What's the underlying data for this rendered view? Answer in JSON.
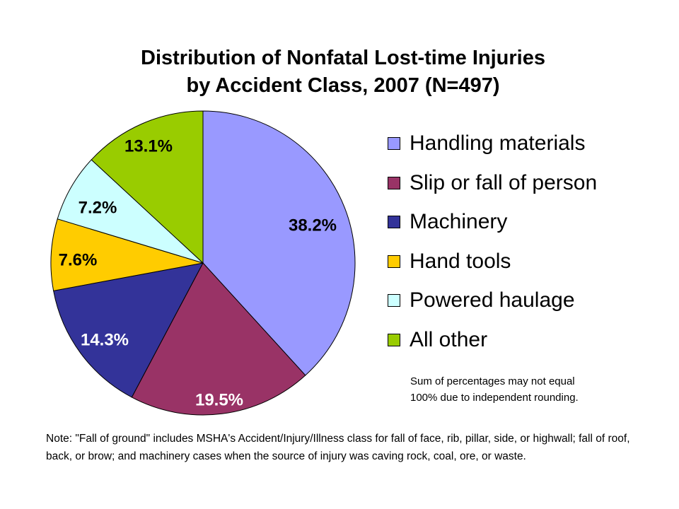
{
  "chart_data": {
    "type": "pie",
    "title_lines": [
      "Distribution of Nonfatal Lost-time Injuries",
      "by Accident Class, 2007 (N=497)"
    ],
    "slices": [
      {
        "name": "Handling materials",
        "value": 38.2,
        "label": "38.2%",
        "color": "#9999FF"
      },
      {
        "name": "Slip or fall of person",
        "value": 19.5,
        "label": "19.5%",
        "color": "#993366"
      },
      {
        "name": "Machinery",
        "value": 14.3,
        "label": "14.3%",
        "color": "#333399"
      },
      {
        "name": "Hand tools",
        "value": 7.6,
        "label": "7.6%",
        "color": "#FFCC00"
      },
      {
        "name": "Powered haulage",
        "value": 7.2,
        "label": "7.2%",
        "color": "#CCFFFF"
      },
      {
        "name": "All other",
        "value": 13.1,
        "label": "13.1%",
        "color": "#99CC00"
      }
    ],
    "label_colors": {
      "38.2%": "#000000",
      "19.5%": "#FFFFFF",
      "14.3%": "#FFFFFF",
      "7.6%": "#000000",
      "7.2%": "#000000",
      "13.1%": "#000000"
    },
    "start": "12 o'clock",
    "direction": "clockwise",
    "legend_position": "right"
  },
  "footnote_lines": [
    "Sum of percentages may not equal",
    "100% due to independent rounding."
  ],
  "note": "Note: \"Fall of ground\" includes MSHA's Accident/Injury/Illness class for fall of face, rib, pillar, side, or highwall; fall of roof, back, or brow; and machinery cases when the source of injury was caving rock, coal, ore, or waste."
}
